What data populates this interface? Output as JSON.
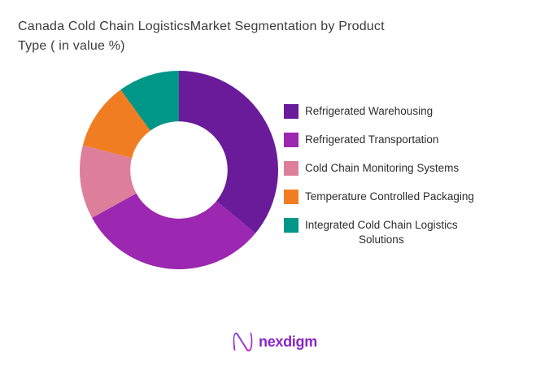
{
  "title": {
    "text": "Canada Cold Chain LogisticsMarket Segmentation by Product\n Type ( in value %)"
  },
  "chart_data": {
    "type": "pie",
    "subtype": "donut",
    "title": "Canada Cold Chain LogisticsMarket Segmentation by Product Type ( in value %)",
    "categories": [
      "Refrigerated Warehousing",
      "Refrigerated Transportation",
      "Cold Chain Monitoring Systems",
      "Temperature Controlled Packaging",
      "Integrated Cold Chain Logistics Solutions"
    ],
    "values": [
      36,
      31,
      12,
      11,
      10
    ],
    "unit": "value %",
    "colors": [
      "#6A1B9A",
      "#9C27B0",
      "#DD7F9B",
      "#F17D22",
      "#009688"
    ],
    "legend_lines": [
      "Refrigerated Warehousing",
      "Refrigerated Transportation",
      "Cold Chain Monitoring Systems",
      "Temperature Controlled Packaging",
      "Integrated Cold Chain Logistics\nSolutions"
    ],
    "start_angle_deg": 0,
    "direction": "clockwise",
    "inner_radius_ratio": 0.49,
    "legend_position": "right",
    "data_labels_shown": false,
    "background": "#ffffff"
  },
  "logo": {
    "brand": "nexdigm",
    "color": "#8A27C9",
    "mark_gradient_start": "#6E3BE0",
    "mark_gradient_end": "#C127C9"
  }
}
